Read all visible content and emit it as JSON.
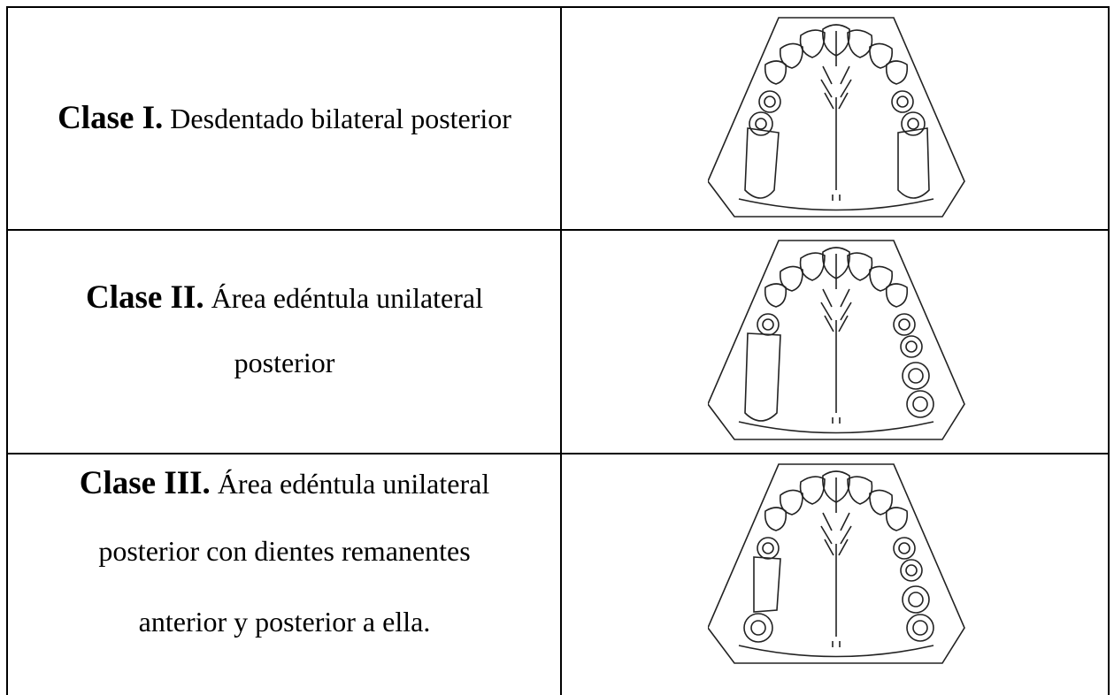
{
  "table": {
    "rows": [
      {
        "label": "Clase I.",
        "lines": [
          "Desdentado bilateral posterior"
        ]
      },
      {
        "label": "Clase II.",
        "lines": [
          "Área edéntula unilateral",
          "posterior"
        ]
      },
      {
        "label": "Clase III.",
        "lines": [
          "Área edéntula unilateral",
          "posterior con dientes remanentes",
          "anterior y posterior a ella."
        ]
      }
    ]
  }
}
